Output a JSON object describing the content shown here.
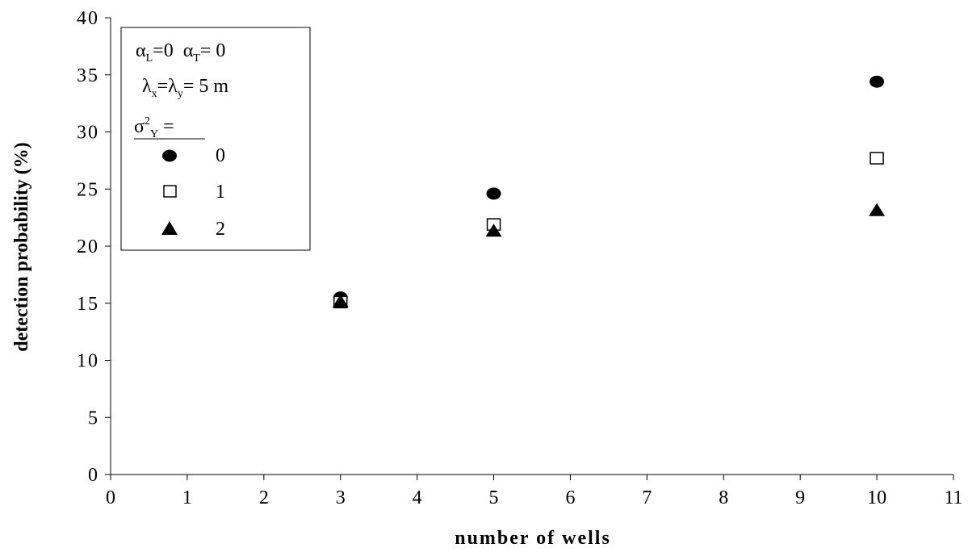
{
  "chart_data": {
    "type": "scatter",
    "xlabel": "number of wells",
    "ylabel": "detection probability (%)",
    "xlim": [
      0,
      11
    ],
    "ylim": [
      0,
      40
    ],
    "x_ticks": [
      "0",
      "1",
      "2",
      "3",
      "4",
      "5",
      "6",
      "7",
      "8",
      "9",
      "10",
      "11"
    ],
    "y_ticks": [
      "0",
      "5",
      "10",
      "15",
      "20",
      "25",
      "30",
      "35",
      "40"
    ],
    "grid": false,
    "legend_position": "top-left",
    "legend_header": {
      "alpha_L": "0",
      "alpha_T": "0",
      "lambda": "5 m",
      "sigma_label": "="
    },
    "series": [
      {
        "name": "0",
        "marker": "filled-circle",
        "x": [
          3,
          5,
          10
        ],
        "y": [
          15.5,
          24.6,
          34.4
        ]
      },
      {
        "name": "1",
        "marker": "open-square",
        "x": [
          3,
          5,
          10
        ],
        "y": [
          15.1,
          21.9,
          27.7
        ]
      },
      {
        "name": "2",
        "marker": "filled-triangle",
        "x": [
          3,
          5,
          10
        ],
        "y": [
          15.2,
          21.4,
          23.2
        ]
      }
    ],
    "colors": {
      "marker": "#000000",
      "axis": "#000000",
      "background": "#ffffff"
    }
  }
}
